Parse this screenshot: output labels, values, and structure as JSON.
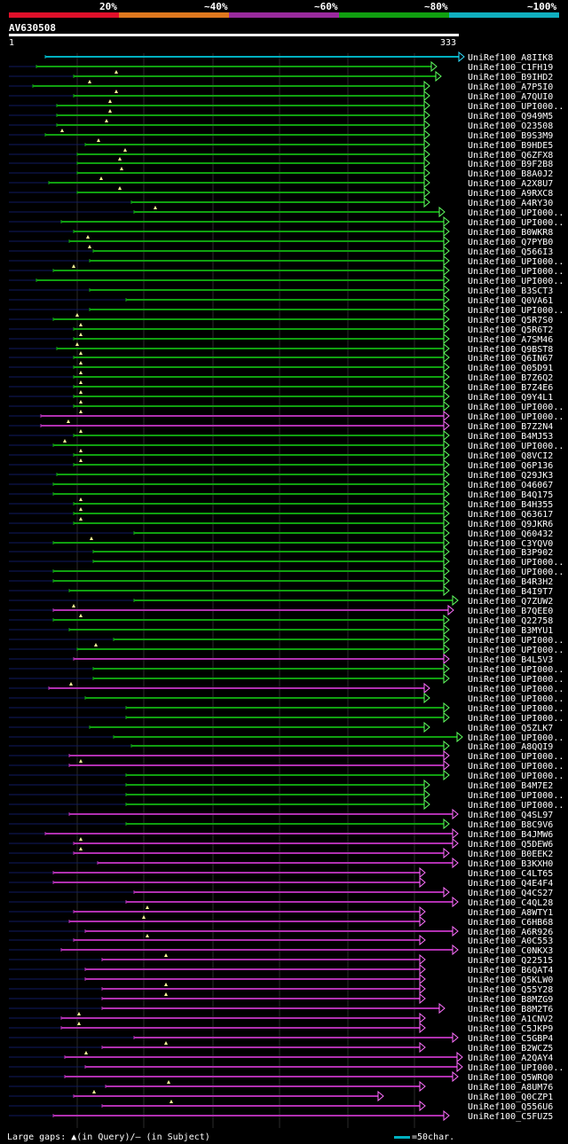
{
  "header": {
    "percent_labels": [
      "20%",
      "~40%",
      "~60%",
      "~80%",
      "~100%"
    ],
    "identity_colors": [
      "#e0102a",
      "#e0781e",
      "#9a2a9e",
      "#10a010",
      "#10b0c0"
    ],
    "query_name": "AV630508",
    "ruler_start": "1",
    "ruler_end": "333"
  },
  "footer": {
    "gap_text": "Large gaps: ▲(in Query)/— (in Subject)",
    "scale_text": "=50char."
  },
  "colors": {
    "green": "#10a010",
    "magenta": "#b030b0",
    "cyan": "#00b0c0",
    "connector": "#101a60",
    "arrow_green": "#60ff60",
    "arrow_magenta": "#ff70ff",
    "arrow_cyan": "#30e0ff",
    "gap_marker": "#ffff99",
    "grid": "#2a2a2a"
  },
  "hits": [
    "UniRef100_A8IIK8",
    "UniRef100_C1FH19",
    "UniRef100_B9IHD2",
    "UniRef100_A7P5I0",
    "UniRef100_A7QUI0",
    "UniRef100_UPI000..",
    "UniRef100_Q949M5",
    "UniRef100_O23508",
    "UniRef100_B9S3M9",
    "UniRef100_B9HDE5",
    "UniRef100_Q6ZFX8",
    "UniRef100_B9F2B8",
    "UniRef100_B8A0J2",
    "UniRef100_A2X8U7",
    "UniRef100_A9RXC8",
    "UniRef100_A4RY30",
    "UniRef100_UPI000..",
    "UniRef100_UPI000..",
    "UniRef100_B0WKR8",
    "UniRef100_Q7PYB0",
    "UniRef100_Q566I3",
    "UniRef100_UPI000..",
    "UniRef100_UPI000..",
    "UniRef100_UPI000..",
    "UniRef100_B3SCT3",
    "UniRef100_Q0VA61",
    "UniRef100_UPI000..",
    "UniRef100_Q5R7S0",
    "UniRef100_Q5R6T2",
    "UniRef100_A7SM46",
    "UniRef100_Q9BST8",
    "UniRef100_Q6IN67",
    "UniRef100_Q05D91",
    "UniRef100_B7Z6Q2",
    "UniRef100_B7Z4E6",
    "UniRef100_Q9Y4L1",
    "UniRef100_UPI000..",
    "UniRef100_UPI000..",
    "UniRef100_B7Z2N4",
    "UniRef100_B4MJ53",
    "UniRef100_UPI000..",
    "UniRef100_Q8VCI2",
    "UniRef100_Q6P136",
    "UniRef100_Q29JK3",
    "UniRef100_O46067",
    "UniRef100_B4Q175",
    "UniRef100_B4H355",
    "UniRef100_Q63617",
    "UniRef100_Q9JKR6",
    "UniRef100_Q60432",
    "UniRef100_C3YQV0",
    "UniRef100_B3P902",
    "UniRef100_UPI000..",
    "UniRef100_UPI000..",
    "UniRef100_B4R3H2",
    "UniRef100_B4I9T7",
    "UniRef100_Q7ZUW2",
    "UniRef100_B7QEE0",
    "UniRef100_Q22758",
    "UniRef100_B3MYU1",
    "UniRef100_UPI000..",
    "UniRef100_UPI000..",
    "UniRef100_B4L5V3",
    "UniRef100_UPI000..",
    "UniRef100_UPI000..",
    "UniRef100_UPI000..",
    "UniRef100_UPI000..",
    "UniRef100_UPI000..",
    "UniRef100_UPI000..",
    "UniRef100_Q5ZLK7",
    "UniRef100_UPI000..",
    "UniRef100_A8QQI9",
    "UniRef100_UPI000..",
    "UniRef100_UPI000..",
    "UniRef100_UPI000..",
    "UniRef100_B4M7E2",
    "UniRef100_UPI000..",
    "UniRef100_UPI000..",
    "UniRef100_Q4SL97",
    "UniRef100_B8C9V6",
    "UniRef100_B4JMW6",
    "UniRef100_Q5DEW6",
    "UniRef100_B0EEK2",
    "UniRef100_B3KXH0",
    "UniRef100_C4LT65",
    "UniRef100_Q4E4F4",
    "UniRef100_Q4CS27",
    "UniRef100_C4QL28",
    "UniRef100_A8WTY1",
    "UniRef100_C6HB68",
    "UniRef100_A6R926",
    "UniRef100_A0C553",
    "UniRef100_C0NKX3",
    "UniRef100_Q22515",
    "UniRef100_B6QAT4",
    "UniRef100_Q5KLW0",
    "UniRef100_Q55Y28",
    "UniRef100_B8MZG9",
    "UniRef100_B8M2T6",
    "UniRef100_A1CNV2",
    "UniRef100_C5JKP9",
    "UniRef100_C5GBP4",
    "UniRef100_B2WCZ5",
    "UniRef100_A2QAY4",
    "UniRef100_UPI000..",
    "UniRef100_Q5WRQ0",
    "UniRef100_A8UM76",
    "UniRef100_Q0CZP1",
    "UniRef100_Q556U6",
    "UniRef100_C5FUZ5"
  ]
}
